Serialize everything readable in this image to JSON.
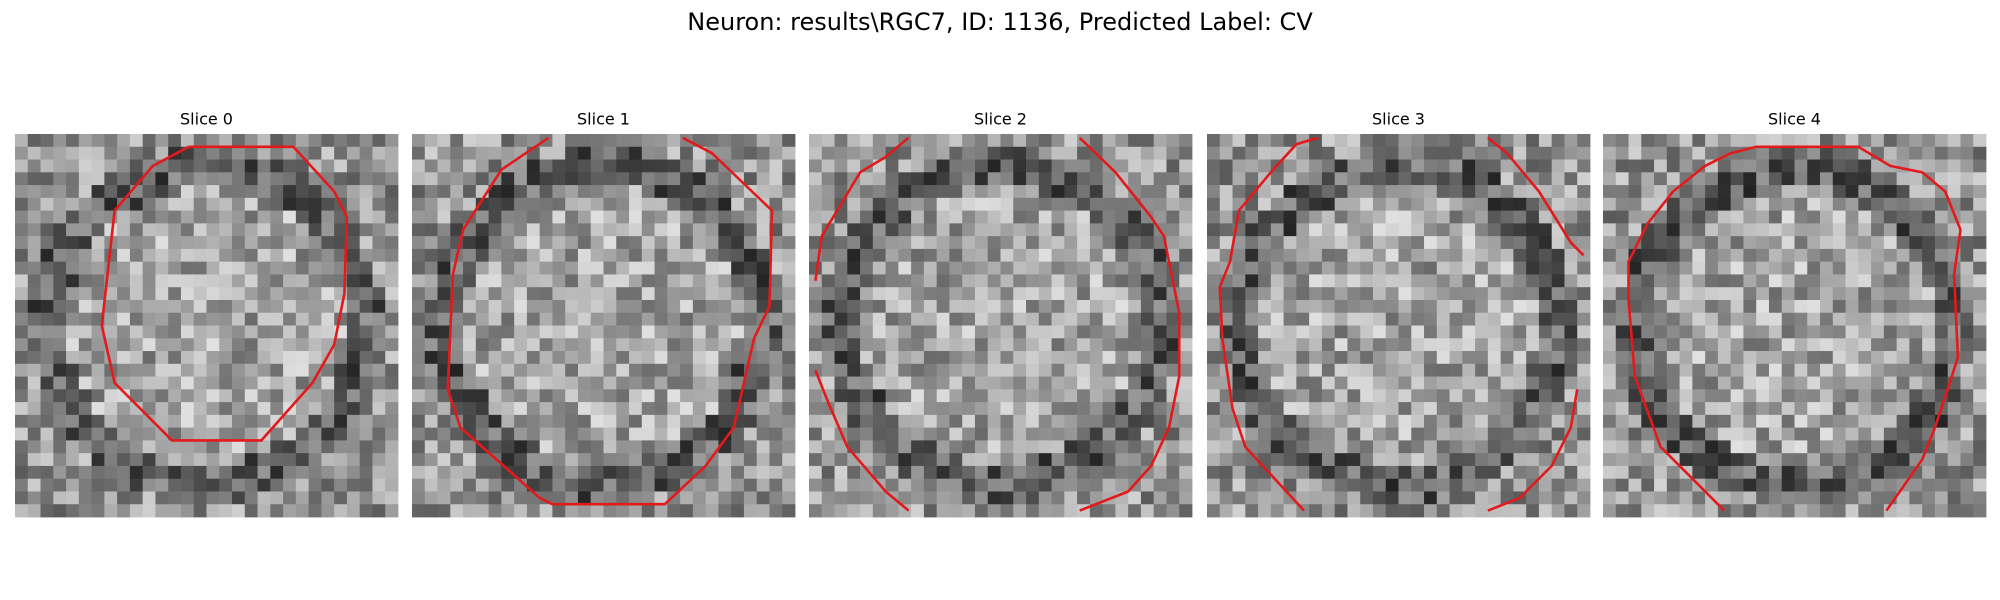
{
  "title": "Neuron: results\\RGC7, ID: 1136, Predicted Label: CV",
  "panels": [
    {
      "title": "Slice 0"
    },
    {
      "title": "Slice 1"
    },
    {
      "title": "Slice 2"
    },
    {
      "title": "Slice 3"
    },
    {
      "title": "Slice 4"
    }
  ]
}
